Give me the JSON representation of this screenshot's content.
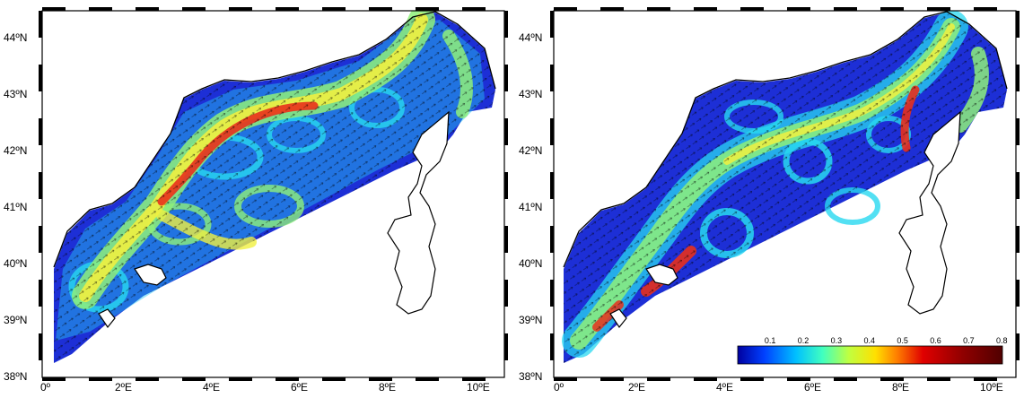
{
  "panels": [
    {
      "id": "left",
      "lat_labels": [
        "44ºN",
        "43ºN",
        "42ºN",
        "41ºN",
        "40ºN",
        "39ºN",
        "38ºN"
      ],
      "lon_labels": [
        "0º",
        "2ºE",
        "4ºE",
        "6ºE",
        "8ºE",
        "10ºE"
      ]
    },
    {
      "id": "right",
      "lat_labels": [
        "44ºN",
        "43ºN",
        "42ºN",
        "41ºN",
        "40ºN",
        "39ºN",
        "38ºN"
      ],
      "lon_labels": [
        "0º",
        "2ºE",
        "4ºE",
        "6ºE",
        "8ºE",
        "10ºE"
      ]
    }
  ],
  "colorbar": {
    "ticks": [
      "0.1",
      "0.2",
      "0.3",
      "0.4",
      "0.5",
      "0.6",
      "0.7",
      "0.8"
    ],
    "range": [
      0,
      0.8
    ],
    "colors": [
      "#0000a0",
      "#0040ff",
      "#00c0ff",
      "#40ffc0",
      "#c0ff40",
      "#ffe000",
      "#ff8000",
      "#e00000",
      "#900000",
      "#500000"
    ]
  },
  "colors": {
    "sea_low": "#1d2fd6",
    "current_cyan": "#28d8f0",
    "current_green": "#8ef07a",
    "current_yellow": "#f0f040",
    "current_red": "#e8301c",
    "land": "#ffffff",
    "coast": "#000000"
  }
}
